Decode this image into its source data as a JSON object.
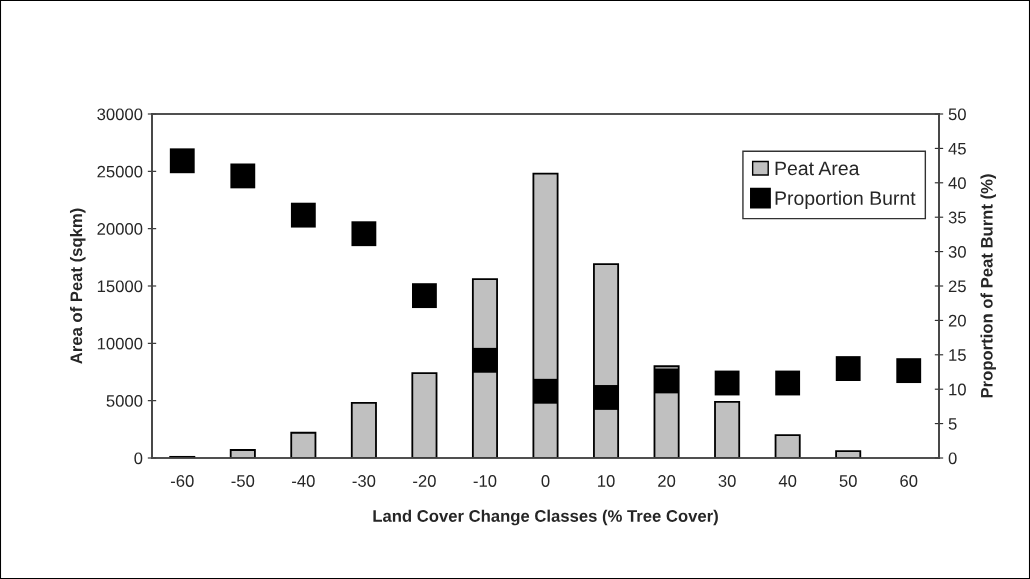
{
  "chart_data": {
    "type": "bar",
    "xlabel": "Land Cover Change Classes (% Tree Cover)",
    "ylabel": "Area of Peat (sqkm)",
    "y2label": "Proportion of Peat Burnt (%)",
    "categories": [
      "-60",
      "-50",
      "-40",
      "-30",
      "-20",
      "-10",
      "0",
      "10",
      "20",
      "30",
      "40",
      "50",
      "60"
    ],
    "series": [
      {
        "name": "Peat Area",
        "color": "#c0c0c0",
        "values": [
          100,
          700,
          2200,
          4800,
          7400,
          15600,
          24800,
          16900,
          8000,
          4900,
          2000,
          600,
          null
        ]
      },
      {
        "name": "Proportion Burnt",
        "type": "scatter",
        "axis": "y2",
        "marker": "square",
        "color": "#000000",
        "values": [
          43.2,
          41.0,
          35.3,
          32.6,
          23.6,
          14.2,
          9.7,
          8.8,
          11.2,
          10.9,
          10.9,
          13.0,
          12.7
        ]
      }
    ],
    "ylim": [
      0,
      30000
    ],
    "yticks": [
      0,
      5000,
      10000,
      15000,
      20000,
      25000,
      30000
    ],
    "y2lim": [
      0,
      50
    ],
    "y2ticks": [
      0,
      5,
      10,
      15,
      20,
      25,
      30,
      35,
      40,
      45,
      50
    ],
    "legend": "top right",
    "grid": false
  }
}
